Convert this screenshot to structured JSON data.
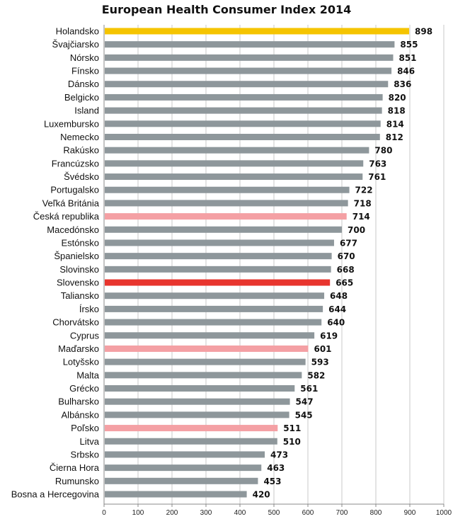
{
  "chart_data": {
    "type": "bar",
    "orientation": "horizontal",
    "title": "European Health Consumer Index 2014",
    "xlabel": "",
    "ylabel": "",
    "xlim": [
      0,
      1000
    ],
    "xticks": [
      0,
      100,
      200,
      300,
      400,
      500,
      600,
      700,
      800,
      900,
      1000
    ],
    "grid": "vertical",
    "categories": [
      "Holandsko",
      "Švajčiarsko",
      "Nórsko",
      "Fínsko",
      "Dánsko",
      "Belgicko",
      "Island",
      "Luxembursko",
      "Nemecko",
      "Rakúsko",
      "Francúzsko",
      "Švédsko",
      "Portugalsko",
      "Veľká Británia",
      "Česká republika",
      "Macedónsko",
      "Estónsko",
      "Španielsko",
      "Slovinsko",
      "Slovensko",
      "Taliansko",
      "Írsko",
      "Chorvátsko",
      "Cyprus",
      "Maďarsko",
      "Lotyšsko",
      "Malta",
      "Grécko",
      "Bulharsko",
      "Albánsko",
      "Poľsko",
      "Litva",
      "Srbsko",
      "Čierna Hora",
      "Rumunsko",
      "Bosna a Hercegovina"
    ],
    "values": [
      898,
      855,
      851,
      846,
      836,
      820,
      818,
      814,
      812,
      780,
      763,
      761,
      722,
      718,
      714,
      700,
      677,
      670,
      668,
      665,
      648,
      644,
      640,
      619,
      601,
      593,
      582,
      561,
      547,
      545,
      511,
      510,
      473,
      463,
      453,
      420
    ],
    "colors": {
      "default": "#8e979b",
      "highlight_top": "#f5c400",
      "highlight_slovakia": "#e8352e",
      "highlight_neighbors": "#f4a0a4",
      "grid": "#c8c8c8"
    },
    "bar_color_keys": [
      "highlight_top",
      "default",
      "default",
      "default",
      "default",
      "default",
      "default",
      "default",
      "default",
      "default",
      "default",
      "default",
      "default",
      "default",
      "highlight_neighbors",
      "default",
      "default",
      "default",
      "default",
      "highlight_slovakia",
      "default",
      "default",
      "default",
      "default",
      "highlight_neighbors",
      "default",
      "default",
      "default",
      "default",
      "default",
      "highlight_neighbors",
      "default",
      "default",
      "default",
      "default",
      "default"
    ]
  }
}
